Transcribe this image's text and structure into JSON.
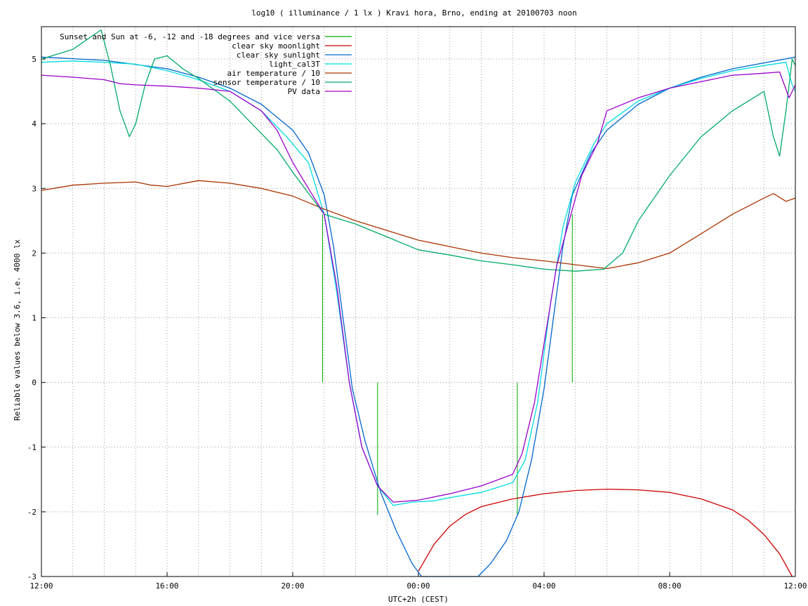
{
  "chart_data": {
    "type": "line",
    "title": "log10 ( illuminance / 1 lx ) Kravi hora, Brno, ending at 20100703 noon",
    "xlabel": "UTC+2h (CEST)",
    "ylabel": "Reliable values below 3.6, i.e. 4000 lx",
    "xlim": [
      12,
      36
    ],
    "ylim": [
      -3,
      5.5
    ],
    "x_ticks": [
      {
        "x": 12,
        "label": "12:00"
      },
      {
        "x": 16,
        "label": "16:00"
      },
      {
        "x": 20,
        "label": "20:00"
      },
      {
        "x": 24,
        "label": "00:00"
      },
      {
        "x": 28,
        "label": "04:00"
      },
      {
        "x": 32,
        "label": "08:00"
      },
      {
        "x": 36,
        "label": "12:00"
      }
    ],
    "y_ticks": [
      {
        "y": 5,
        "label": "5"
      },
      {
        "y": 4,
        "label": "4"
      },
      {
        "y": 3,
        "label": "3"
      },
      {
        "y": 2,
        "label": "2"
      },
      {
        "y": 1,
        "label": "1"
      },
      {
        "y": 0,
        "label": "0"
      },
      {
        "y": -1,
        "label": "-1"
      },
      {
        "y": -2,
        "label": "-2"
      },
      {
        "y": -3,
        "label": "-3"
      }
    ],
    "grid": true,
    "legend_position": "top-left",
    "series": [
      {
        "name": "Sunset and Sun at -6, -12 and -18 degrees and vice versa",
        "color": "#00aa00",
        "style": "impulses",
        "points": [
          [
            20.95,
            2.6
          ],
          [
            21.83,
            0
          ],
          [
            22.7,
            -2.05
          ],
          [
            27.15,
            -2.05
          ],
          [
            28.05,
            0
          ],
          [
            28.9,
            2.6
          ]
        ]
      },
      {
        "name": "clear sky moonlight",
        "color": "#cc0000",
        "points": [
          [
            24.0,
            -2.92
          ],
          [
            24.5,
            -2.5
          ],
          [
            25.0,
            -2.22
          ],
          [
            25.5,
            -2.04
          ],
          [
            26.0,
            -1.92
          ],
          [
            27.0,
            -1.8
          ],
          [
            28.0,
            -1.72
          ],
          [
            29.0,
            -1.67
          ],
          [
            30.0,
            -1.65
          ],
          [
            31.0,
            -1.66
          ],
          [
            32.0,
            -1.7
          ],
          [
            33.0,
            -1.8
          ],
          [
            34.0,
            -1.97
          ],
          [
            34.5,
            -2.13
          ],
          [
            35.0,
            -2.35
          ],
          [
            35.5,
            -2.65
          ],
          [
            35.9,
            -3.0
          ]
        ]
      },
      {
        "name": "clear sky sunlight",
        "color": "#0066cc",
        "points": [
          [
            12.0,
            5.03
          ],
          [
            14.0,
            4.98
          ],
          [
            16.0,
            4.85
          ],
          [
            17.0,
            4.72
          ],
          [
            18.0,
            4.55
          ],
          [
            19.0,
            4.3
          ],
          [
            20.0,
            3.9
          ],
          [
            20.5,
            3.55
          ],
          [
            21.0,
            2.9
          ],
          [
            21.3,
            2.1
          ],
          [
            21.6,
            1.0
          ],
          [
            21.9,
            -0.1
          ],
          [
            22.3,
            -0.9
          ],
          [
            22.8,
            -1.7
          ],
          [
            23.3,
            -2.3
          ],
          [
            23.8,
            -2.8
          ],
          [
            24.1,
            -3.0
          ],
          [
            25.9,
            -3.0
          ],
          [
            26.3,
            -2.8
          ],
          [
            26.8,
            -2.45
          ],
          [
            27.2,
            -2.0
          ],
          [
            27.6,
            -1.2
          ],
          [
            28.0,
            -0.1
          ],
          [
            28.3,
            1.0
          ],
          [
            28.6,
            2.1
          ],
          [
            28.9,
            2.9
          ],
          [
            29.5,
            3.55
          ],
          [
            30.0,
            3.9
          ],
          [
            31.0,
            4.3
          ],
          [
            32.0,
            4.55
          ],
          [
            33.0,
            4.72
          ],
          [
            34.0,
            4.85
          ],
          [
            36.0,
            5.03
          ]
        ]
      },
      {
        "name": "light_cal3T",
        "color": "#00dddd",
        "points": [
          [
            12.0,
            4.95
          ],
          [
            13.0,
            4.97
          ],
          [
            14.0,
            4.95
          ],
          [
            15.0,
            4.92
          ],
          [
            16.0,
            4.82
          ],
          [
            17.0,
            4.68
          ],
          [
            18.0,
            4.5
          ],
          [
            19.0,
            4.2
          ],
          [
            19.8,
            3.8
          ],
          [
            20.5,
            3.4
          ],
          [
            21.0,
            2.6
          ],
          [
            21.4,
            1.4
          ],
          [
            21.8,
            0.0
          ],
          [
            22.2,
            -1.0
          ],
          [
            22.7,
            -1.6
          ],
          [
            23.2,
            -1.9
          ],
          [
            23.8,
            -1.85
          ],
          [
            24.5,
            -1.83
          ],
          [
            25.0,
            -1.78
          ],
          [
            26.0,
            -1.7
          ],
          [
            27.0,
            -1.55
          ],
          [
            27.4,
            -1.2
          ],
          [
            27.8,
            -0.3
          ],
          [
            28.2,
            1.2
          ],
          [
            28.6,
            2.4
          ],
          [
            29.0,
            3.1
          ],
          [
            29.6,
            3.7
          ],
          [
            30.0,
            4.0
          ],
          [
            31.0,
            4.35
          ],
          [
            32.0,
            4.55
          ],
          [
            33.0,
            4.7
          ],
          [
            34.0,
            4.82
          ],
          [
            35.0,
            4.9
          ],
          [
            35.7,
            4.95
          ],
          [
            35.9,
            4.6
          ],
          [
            36.0,
            4.5
          ]
        ]
      },
      {
        "name": "air temperature / 10",
        "color": "#aa3300",
        "points": [
          [
            12.0,
            2.97
          ],
          [
            13.0,
            3.05
          ],
          [
            14.0,
            3.08
          ],
          [
            15.0,
            3.1
          ],
          [
            15.5,
            3.05
          ],
          [
            16.0,
            3.03
          ],
          [
            17.0,
            3.12
          ],
          [
            18.0,
            3.08
          ],
          [
            19.0,
            3.0
          ],
          [
            20.0,
            2.88
          ],
          [
            21.0,
            2.68
          ],
          [
            22.0,
            2.5
          ],
          [
            23.0,
            2.35
          ],
          [
            24.0,
            2.2
          ],
          [
            25.0,
            2.1
          ],
          [
            26.0,
            2.0
          ],
          [
            27.0,
            1.93
          ],
          [
            28.0,
            1.88
          ],
          [
            29.0,
            1.82
          ],
          [
            30.0,
            1.76
          ],
          [
            31.0,
            1.85
          ],
          [
            32.0,
            2.0
          ],
          [
            33.0,
            2.3
          ],
          [
            34.0,
            2.6
          ],
          [
            35.0,
            2.85
          ],
          [
            35.3,
            2.92
          ],
          [
            35.7,
            2.8
          ],
          [
            36.0,
            2.85
          ]
        ]
      },
      {
        "name": "sensor temperature / 10",
        "color": "#00aa66",
        "points": [
          [
            12.0,
            5.0
          ],
          [
            13.0,
            5.15
          ],
          [
            13.9,
            5.45
          ],
          [
            14.2,
            4.9
          ],
          [
            14.5,
            4.2
          ],
          [
            14.8,
            3.8
          ],
          [
            15.0,
            4.0
          ],
          [
            15.3,
            4.6
          ],
          [
            15.6,
            5.0
          ],
          [
            16.0,
            5.05
          ],
          [
            16.5,
            4.85
          ],
          [
            17.0,
            4.7
          ],
          [
            18.0,
            4.35
          ],
          [
            18.7,
            4.0
          ],
          [
            19.5,
            3.6
          ],
          [
            20.0,
            3.25
          ],
          [
            21.0,
            2.6
          ],
          [
            22.0,
            2.45
          ],
          [
            23.0,
            2.25
          ],
          [
            24.0,
            2.05
          ],
          [
            25.0,
            1.97
          ],
          [
            26.0,
            1.88
          ],
          [
            27.0,
            1.82
          ],
          [
            28.0,
            1.75
          ],
          [
            29.0,
            1.72
          ],
          [
            29.9,
            1.75
          ],
          [
            30.5,
            2.0
          ],
          [
            31.0,
            2.5
          ],
          [
            32.0,
            3.2
          ],
          [
            33.0,
            3.8
          ],
          [
            34.0,
            4.2
          ],
          [
            35.0,
            4.5
          ],
          [
            35.3,
            3.8
          ],
          [
            35.5,
            3.5
          ],
          [
            35.7,
            4.2
          ],
          [
            35.9,
            5.0
          ],
          [
            36.0,
            4.9
          ]
        ]
      },
      {
        "name": "PV data",
        "color": "#9900cc",
        "points": [
          [
            12.0,
            4.75
          ],
          [
            13.0,
            4.72
          ],
          [
            14.0,
            4.68
          ],
          [
            14.5,
            4.62
          ],
          [
            15.0,
            4.6
          ],
          [
            16.0,
            4.58
          ],
          [
            17.0,
            4.55
          ],
          [
            18.0,
            4.5
          ],
          [
            19.0,
            4.2
          ],
          [
            19.5,
            3.9
          ],
          [
            20.0,
            3.4
          ],
          [
            20.5,
            3.0
          ],
          [
            21.0,
            2.6
          ],
          [
            21.4,
            1.5
          ],
          [
            21.8,
            0.0
          ],
          [
            22.2,
            -1.0
          ],
          [
            22.7,
            -1.6
          ],
          [
            23.2,
            -1.85
          ],
          [
            24.0,
            -1.82
          ],
          [
            25.0,
            -1.72
          ],
          [
            26.0,
            -1.6
          ],
          [
            27.0,
            -1.42
          ],
          [
            27.3,
            -1.1
          ],
          [
            27.7,
            -0.3
          ],
          [
            28.0,
            0.6
          ],
          [
            28.4,
            1.8
          ],
          [
            28.8,
            2.5
          ],
          [
            29.2,
            3.2
          ],
          [
            29.7,
            3.7
          ],
          [
            30.0,
            4.2
          ],
          [
            31.0,
            4.4
          ],
          [
            32.0,
            4.55
          ],
          [
            33.0,
            4.65
          ],
          [
            34.0,
            4.75
          ],
          [
            35.0,
            4.78
          ],
          [
            35.5,
            4.8
          ],
          [
            35.8,
            4.4
          ],
          [
            36.0,
            4.6
          ]
        ]
      }
    ]
  }
}
